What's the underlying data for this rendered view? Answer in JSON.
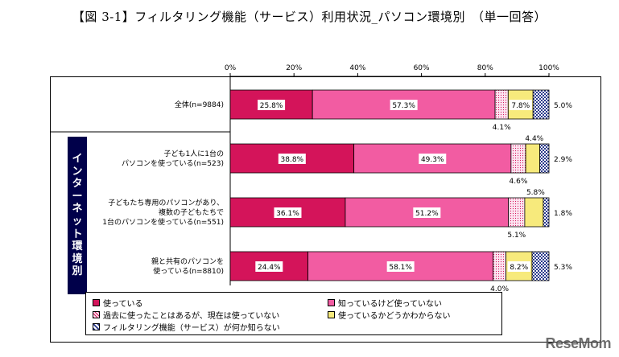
{
  "title": "【図 3-1】フィルタリング機能（サービス）利用状況_パソコン環境別　（単一回答）",
  "sidebar_label": "インターネット環境別",
  "watermark": "ReseMom",
  "colors": {
    "using": "#d4145a",
    "know_not_using": "#f25ca2",
    "used_before": "#fbd3ea",
    "unknown_if_using": "#f7ea7c",
    "dont_know_feature": "#a8b3d6"
  },
  "chart_data": {
    "type": "bar",
    "orientation": "horizontal",
    "stacked": true,
    "xlim": [
      0,
      100
    ],
    "x_ticks": [
      "0%",
      "20%",
      "40%",
      "60%",
      "80%",
      "100%"
    ],
    "categories": [
      [
        "全体(n=9884)"
      ],
      [
        "子ども1人に1台の",
        "パソコンを使っている(n=523)"
      ],
      [
        "子どもたち専用のパソコンがあり、",
        "複数の子どもたちで",
        "1台のパソコンを使っている(n=551)"
      ],
      [
        "親と共有のパソコンを",
        "使っている(n=8810)"
      ]
    ],
    "series": [
      {
        "name": "使っている",
        "values": [
          25.8,
          38.8,
          36.1,
          24.4
        ],
        "labels": [
          "25.8%",
          "38.8%",
          "36.1%",
          "24.4%"
        ]
      },
      {
        "name": "知っているけど使っていない",
        "values": [
          57.3,
          49.3,
          51.2,
          58.1
        ],
        "labels": [
          "57.3%",
          "49.3%",
          "51.2%",
          "58.1%"
        ]
      },
      {
        "name": "過去に使ったことはあるが、現在は使っていない",
        "values": [
          4.1,
          4.6,
          5.1,
          4.0
        ],
        "labels": [
          "4.1%",
          "4.6%",
          "5.1%",
          "4.0%"
        ]
      },
      {
        "name": "使っているかどうかわからない",
        "values": [
          7.8,
          4.4,
          5.8,
          8.2
        ],
        "labels": [
          "7.8%",
          "4.4%",
          "5.8%",
          "8.2%"
        ]
      },
      {
        "name": "フィルタリング機能（サービス）が何か知らない",
        "values": [
          5.0,
          2.9,
          1.8,
          5.3
        ],
        "labels": [
          "5.0%",
          "2.9%",
          "1.8%",
          "5.3%"
        ]
      }
    ],
    "legend_position": "bottom"
  }
}
